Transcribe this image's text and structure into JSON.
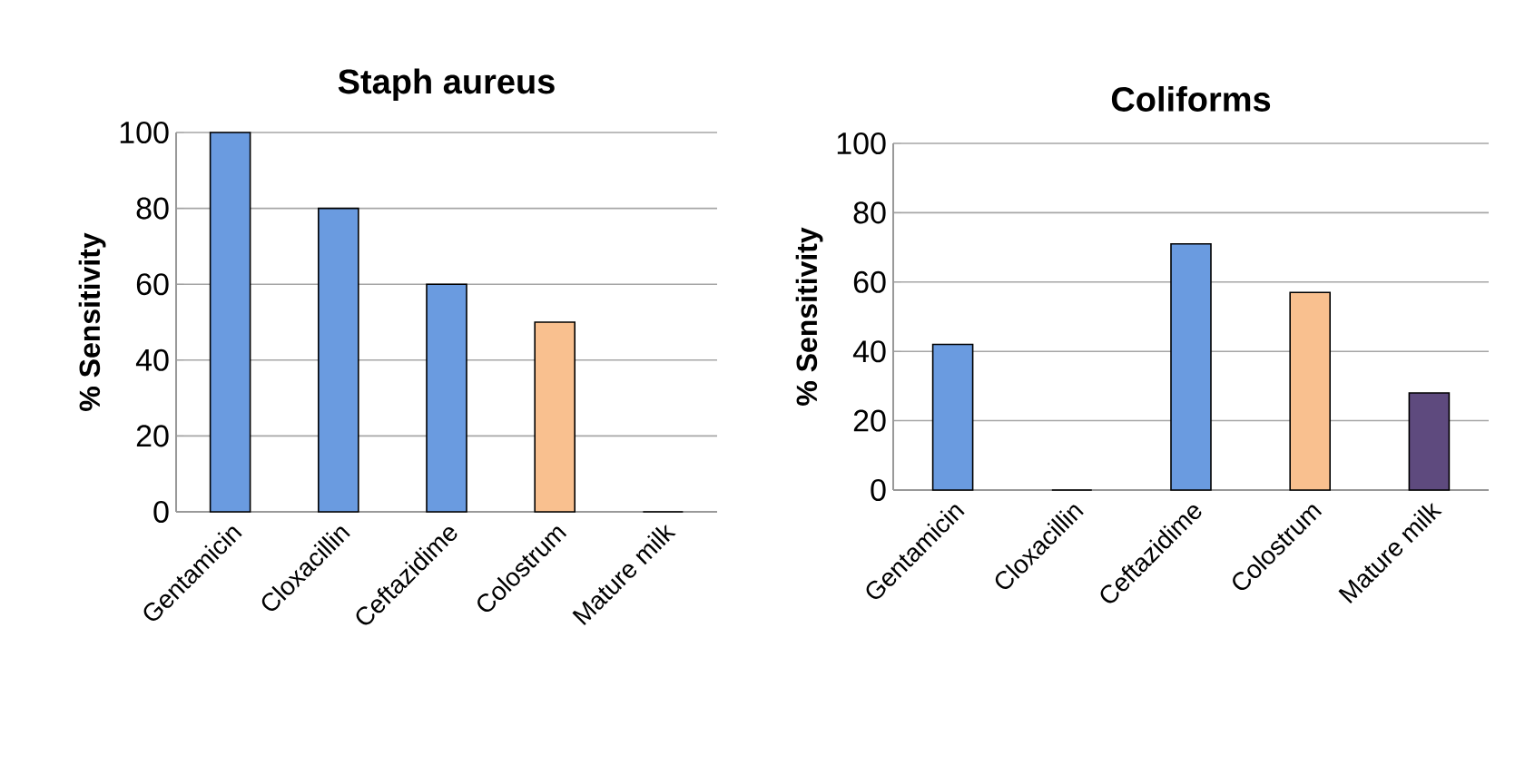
{
  "chart_data": [
    {
      "type": "bar",
      "title": "Staph aureus",
      "ylabel": "% Sensitivity",
      "categories": [
        "Gentamicin",
        "Cloxacillin",
        "Ceftazidime",
        "Colostrum",
        "Mature milk"
      ],
      "values": [
        100,
        80,
        60,
        50,
        0
      ],
      "colors": [
        "#6a9be0",
        "#6a9be0",
        "#6a9be0",
        "#f9c08f",
        "#5e4a7e"
      ],
      "ylim": [
        0,
        100
      ],
      "yticks": [
        0,
        20,
        40,
        60,
        80,
        100
      ],
      "grid": "y"
    },
    {
      "type": "bar",
      "title": "Coliforms",
      "ylabel": "% Sensitivity",
      "categories": [
        "Gentamicin",
        "Cloxacillin",
        "Ceftazidime",
        "Colostrum",
        "Mature milk"
      ],
      "values": [
        42,
        0,
        71,
        57,
        28
      ],
      "colors": [
        "#6a9be0",
        "#6a9be0",
        "#6a9be0",
        "#f9c08f",
        "#5e4a7e"
      ],
      "ylim": [
        0,
        100
      ],
      "yticks": [
        0,
        20,
        40,
        60,
        80,
        100
      ],
      "grid": "y"
    }
  ]
}
